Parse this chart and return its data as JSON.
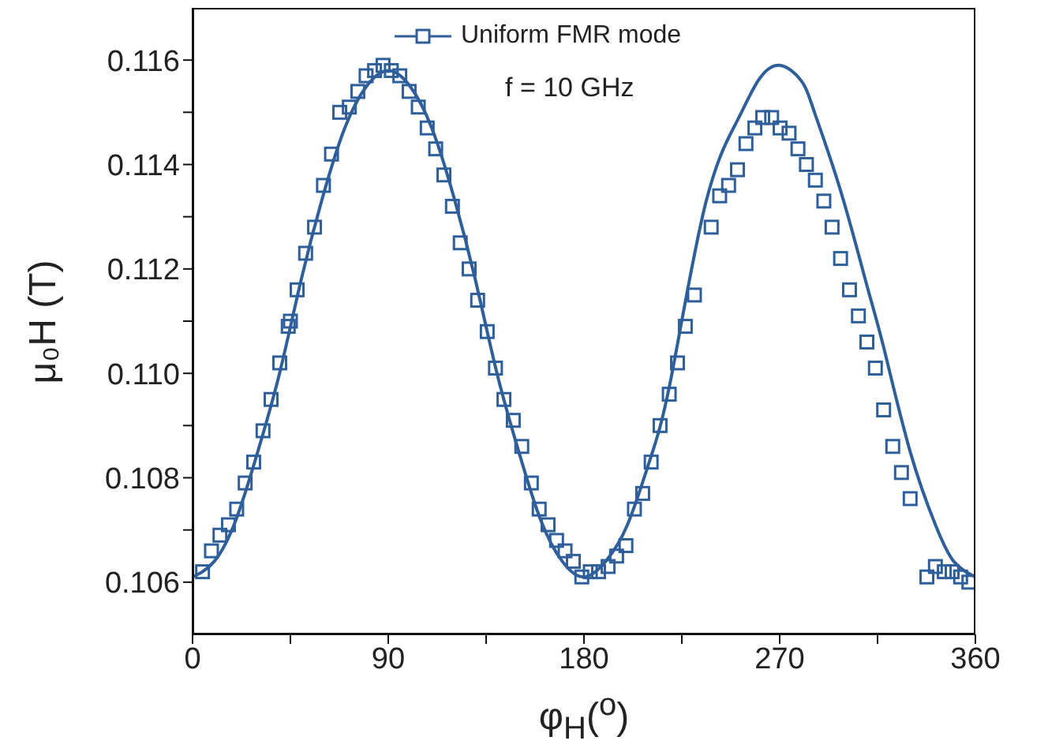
{
  "chart_data": {
    "type": "scatter",
    "xlabel": "φ$_{H}$($^{o}$)",
    "ylabel": "μ₀H (T)",
    "annotations": [
      "f = 10 GHz"
    ],
    "legend": "top",
    "xlim": [
      0,
      360
    ],
    "xticks": [
      0,
      {
        "value": 45,
        "label": null
      },
      90,
      {
        "value": 135,
        "label": null
      },
      180,
      {
        "value": 225,
        "label": null
      },
      270,
      {
        "value": 315,
        "label": null
      },
      360
    ],
    "ylim": [
      0.105,
      0.117
    ],
    "yticks": [
      {
        "value": 0.106,
        "label": "0.106"
      },
      {
        "value": 0.107,
        "label": null
      },
      {
        "value": 0.108,
        "label": "0.108"
      },
      {
        "value": 0.109,
        "label": null
      },
      {
        "value": 0.11,
        "label": "0.110"
      },
      {
        "value": 0.111,
        "label": null
      },
      {
        "value": 0.112,
        "label": "0.112"
      },
      {
        "value": 0.113,
        "label": null
      },
      {
        "value": 0.114,
        "label": "0.114"
      },
      {
        "value": 0.115,
        "label": null
      },
      {
        "value": 0.116,
        "label": "0.116"
      }
    ],
    "series": [
      {
        "name": "Uniform FMR mode",
        "marker": "square",
        "color": "#2e5f9a",
        "x": [
          4.6,
          8.7,
          12.6,
          16.5,
          20.3,
          24.2,
          28.1,
          32.4,
          36.1,
          40.1,
          44.0,
          45.0,
          48.1,
          52.0,
          56.1,
          60.2,
          63.9,
          67.7,
          72.1,
          76.0,
          79.8,
          83.7,
          87.6,
          91.4,
          95.3,
          99.6,
          103.8,
          107.9,
          111.8,
          115.6,
          119.5,
          123.1,
          127.2,
          131.1,
          135.5,
          139.3,
          143.2,
          147.5,
          151.4,
          155.8,
          159.4,
          163.5,
          167.4,
          171.3,
          175.1,
          179.0,
          182.9,
          186.7,
          191.1,
          195.0,
          199.3,
          203.2,
          207.0,
          210.9,
          215.0,
          219.2,
          223.0,
          226.6,
          230.8,
          238.5,
          242.4,
          246.5,
          250.6,
          254.5,
          258.6,
          262.2,
          266.3,
          270.2,
          274.3,
          278.4,
          282.3,
          286.4,
          290.3,
          294.1,
          298.0,
          302.1,
          306.2,
          310.1,
          314.0,
          317.8,
          322.0,
          326.0,
          330.0,
          337.7,
          341.6,
          345.7,
          349.3,
          353.2,
          357.0
        ],
        "values": [
          0.1062,
          0.1066,
          0.1069,
          0.1071,
          0.1074,
          0.1079,
          0.1083,
          0.1089,
          0.1095,
          0.1102,
          0.1109,
          0.111,
          0.1116,
          0.1123,
          0.1128,
          0.1136,
          0.1142,
          0.115,
          0.1151,
          0.1154,
          0.1157,
          0.1158,
          0.1159,
          0.1158,
          0.1157,
          0.1154,
          0.1151,
          0.1147,
          0.1143,
          0.1138,
          0.1132,
          0.1125,
          0.112,
          0.1114,
          0.1108,
          0.1101,
          0.1095,
          0.1091,
          0.1086,
          0.1079,
          0.1074,
          0.1071,
          0.1068,
          0.1066,
          0.1064,
          0.1061,
          0.1062,
          0.1062,
          0.1063,
          0.1065,
          0.1067,
          0.1074,
          0.1077,
          0.1083,
          0.109,
          0.1096,
          0.1102,
          0.1109,
          0.1115,
          0.1128,
          0.1134,
          0.1136,
          0.1139,
          0.1144,
          0.1147,
          0.1149,
          0.1149,
          0.1147,
          0.1146,
          0.1143,
          0.114,
          0.1137,
          0.1133,
          0.1128,
          0.1122,
          0.1116,
          0.1111,
          0.1106,
          0.1101,
          0.1093,
          0.1086,
          0.1081,
          0.1076,
          0.1061,
          0.1063,
          0.1062,
          0.1062,
          0.1061,
          0.106
        ]
      },
      {
        "type": "line",
        "color": "#2e5f9a",
        "x": [
          0,
          10,
          20,
          30,
          40,
          50,
          60,
          70,
          80,
          90,
          100,
          110,
          120,
          130,
          140,
          150,
          160,
          170,
          180,
          190,
          200,
          210,
          220,
          235.6,
          250,
          260,
          270,
          280,
          286,
          298,
          310,
          317.8,
          330,
          341.6,
          350,
          360
        ],
        "values": [
          0.1061,
          0.1064,
          0.1072,
          0.1085,
          0.11,
          0.1118,
          0.1134,
          0.1147,
          0.1155,
          0.1158,
          0.1155,
          0.1147,
          0.1134,
          0.1118,
          0.11,
          0.1085,
          0.1072,
          0.1064,
          0.1061,
          0.1064,
          0.1071,
          0.1083,
          0.1099,
          0.1132,
          0.1148,
          0.1156,
          0.1159,
          0.1156,
          0.115,
          0.1135,
          0.1117,
          0.1105,
          0.1085,
          0.1071,
          0.1064,
          0.1061
        ]
      }
    ]
  }
}
